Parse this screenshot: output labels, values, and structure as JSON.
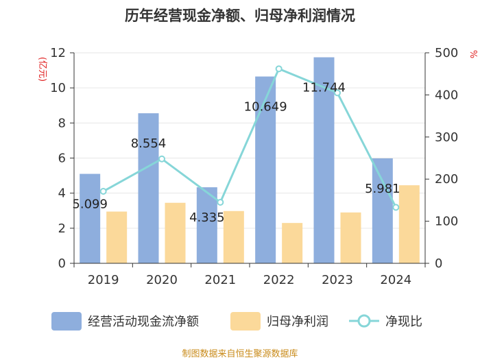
{
  "title": "历年经营现金净额、归母净利润情况",
  "source": "制图数据来自恒生聚源数据库",
  "colors": {
    "series1": "#8eaedd",
    "series2": "#fbd99a",
    "line": "#86d6d8",
    "axis": "#333333",
    "grid": "#e6e6e6",
    "unit_text": "#e02020",
    "source_text": "#c98b1a"
  },
  "chart_data": {
    "type": "bar",
    "title": "历年经营现金净额、归母净利润情况",
    "categories": [
      "2019",
      "2020",
      "2021",
      "2022",
      "2023",
      "2024"
    ],
    "left_axis": {
      "unit": "亿元",
      "ylim": [
        0,
        12
      ],
      "ticks": [
        "0",
        "2",
        "4",
        "6",
        "8",
        "10",
        "12"
      ]
    },
    "right_axis": {
      "unit": "%",
      "ylim": [
        0,
        500
      ],
      "ticks": [
        "0",
        "100",
        "200",
        "300",
        "400",
        "500"
      ]
    },
    "grid": true,
    "legend_position": "bottom",
    "series": [
      {
        "name": "经营活动现金流净额",
        "kind": "bar",
        "axis": "left",
        "values": [
          5.099,
          8.554,
          4.335,
          10.649,
          11.744,
          5.981
        ],
        "labels": [
          "5.099",
          "8.554",
          "4.335",
          "10.649",
          "11.744",
          "5.981"
        ]
      },
      {
        "name": "归母净利润",
        "kind": "bar",
        "axis": "left",
        "values": [
          2.95,
          3.45,
          2.98,
          2.3,
          2.9,
          4.45
        ]
      },
      {
        "name": "净现比",
        "kind": "line",
        "axis": "right",
        "values": [
          171,
          248,
          145,
          462,
          405,
          133
        ]
      }
    ]
  }
}
